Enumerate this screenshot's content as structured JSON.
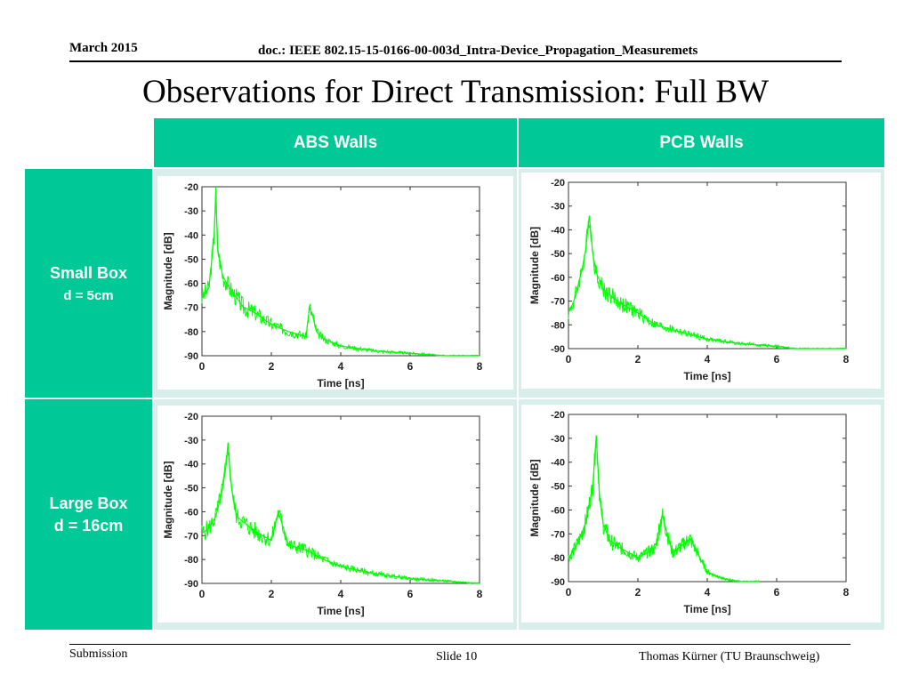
{
  "header": {
    "date": "March 2015",
    "doc": "doc.: IEEE 802.15-15-0166-00-003d_Intra-Device_Propagation_Measuremets"
  },
  "title": "Observations for Direct Transmission: Full BW",
  "table": {
    "col_headers": [
      "ABS Walls",
      "PCB Walls"
    ],
    "rows": [
      {
        "label": "Small Box",
        "sublabel": "d = 5cm"
      },
      {
        "label": "Large Box",
        "sublabel": "d = 16cm"
      }
    ]
  },
  "footer": {
    "left": "Submission",
    "center": "Slide 10",
    "right": "Thomas Kürner (TU Braunschweig)"
  },
  "colors": {
    "accent": "#00c896",
    "trace": "#00ff00",
    "cell_bg": "#d8eeea"
  },
  "chart_data": [
    {
      "type": "line",
      "name": "abs-small",
      "xlabel": "Time [ns]",
      "ylabel": "Magnitude [dB]",
      "xlim": [
        0,
        8
      ],
      "ylim": [
        -90,
        -20
      ],
      "xticks": [
        0,
        2,
        4,
        6,
        8
      ],
      "yticks": [
        -20,
        -30,
        -40,
        -50,
        -60,
        -70,
        -80,
        -90
      ],
      "x": [
        0,
        0.1,
        0.2,
        0.3,
        0.35,
        0.4,
        0.45,
        0.5,
        0.6,
        0.8,
        1.0,
        1.2,
        1.5,
        2.0,
        2.5,
        3.0,
        3.1,
        3.2,
        3.3,
        3.5,
        4.0,
        5.0,
        6.0,
        7.0,
        8.0
      ],
      "y": [
        -66,
        -64,
        -62,
        -48,
        -40,
        -22,
        -45,
        -50,
        -57,
        -62,
        -66,
        -70,
        -72,
        -77,
        -80,
        -82,
        -70,
        -74,
        -80,
        -83,
        -86,
        -88,
        -89,
        -90,
        -90
      ]
    },
    {
      "type": "line",
      "name": "pcb-small",
      "xlabel": "Time [ns]",
      "ylabel": "Magnitude [dB]",
      "xlim": [
        0,
        8
      ],
      "ylim": [
        -90,
        -20
      ],
      "xticks": [
        0,
        2,
        4,
        6,
        8
      ],
      "yticks": [
        -20,
        -30,
        -40,
        -50,
        -60,
        -70,
        -80,
        -90
      ],
      "x": [
        0,
        0.1,
        0.2,
        0.3,
        0.4,
        0.5,
        0.6,
        0.7,
        0.8,
        1.0,
        1.5,
        2.0,
        2.5,
        3.0,
        3.5,
        4.0,
        5.0,
        6.0,
        6.5,
        7.0,
        8.0
      ],
      "y": [
        -75,
        -72,
        -68,
        -62,
        -56,
        -48,
        -34,
        -50,
        -58,
        -65,
        -71,
        -75,
        -80,
        -82,
        -84,
        -86,
        -88,
        -89,
        -90,
        -90,
        -90
      ]
    },
    {
      "type": "line",
      "name": "abs-large",
      "xlabel": "Time [ns]",
      "ylabel": "Magnitude [dB]",
      "xlim": [
        0,
        8
      ],
      "ylim": [
        -90,
        -20
      ],
      "xticks": [
        0,
        2,
        4,
        6,
        8
      ],
      "yticks": [
        -20,
        -30,
        -40,
        -50,
        -60,
        -70,
        -80,
        -90
      ],
      "x": [
        0,
        0.2,
        0.4,
        0.6,
        0.7,
        0.75,
        0.8,
        0.9,
        1.0,
        1.5,
        2.0,
        2.2,
        2.5,
        3.0,
        3.5,
        4.0,
        5.0,
        6.0,
        7.0,
        8.0
      ],
      "y": [
        -69,
        -67,
        -62,
        -50,
        -40,
        -31,
        -42,
        -55,
        -62,
        -68,
        -72,
        -60,
        -74,
        -76,
        -80,
        -83,
        -86,
        -88,
        -89,
        -90
      ]
    },
    {
      "type": "line",
      "name": "pcb-large",
      "xlabel": "Time [ns]",
      "ylabel": "Magnitude [dB]",
      "xlim": [
        0,
        8
      ],
      "ylim": [
        -90,
        -20
      ],
      "xticks": [
        0,
        2,
        4,
        6,
        8
      ],
      "yticks": [
        -20,
        -30,
        -40,
        -50,
        -60,
        -70,
        -80,
        -90
      ],
      "x": [
        0,
        0.1,
        0.3,
        0.5,
        0.7,
        0.8,
        0.9,
        1.0,
        1.2,
        1.5,
        2.0,
        2.5,
        2.7,
        3.0,
        3.5,
        4.0,
        4.5,
        5.0,
        5.5
      ],
      "y": [
        -80,
        -78,
        -73,
        -65,
        -50,
        -29,
        -55,
        -66,
        -73,
        -76,
        -80,
        -76,
        -62,
        -78,
        -72,
        -86,
        -89,
        -90,
        -90
      ]
    }
  ]
}
